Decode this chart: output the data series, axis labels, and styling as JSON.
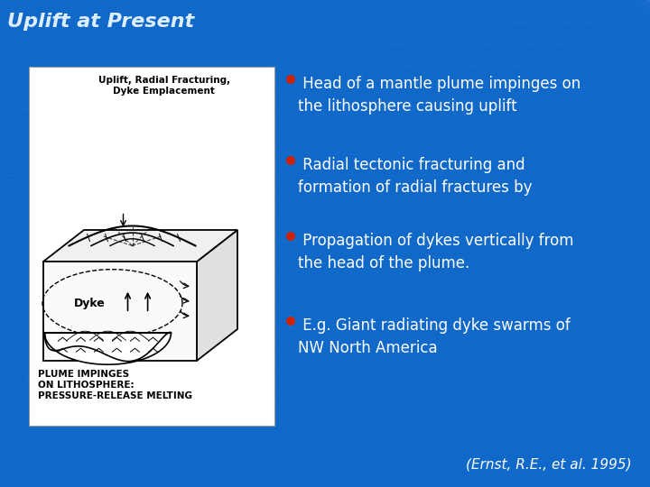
{
  "title": "Uplift at Present",
  "title_color": "#DDEEFF",
  "title_fontsize": 16,
  "bg_color": "#1068C8",
  "bullet_color": "#CC2200",
  "text_color": "#FFFFFF",
  "bullet_points": [
    " Head of a mantle plume impinges on\nthe lithosphere causing uplift",
    " Radial tectonic fracturing and\nformation of radial fractures by",
    " Propagation of dykes vertically from\nthe head of the plume.",
    " E.g. Giant radiating dyke swarms of\nNW North America"
  ],
  "citation": "(Ernst, R.E., et al. 1995)",
  "citation_color": "#FFFFFF",
  "image_label_top1": "Uplift, Radial Fracturing,",
  "image_label_top2": "Dyke Emplacement",
  "image_label_bottom1": "PLUME IMPINGES",
  "image_label_bottom2": "ON LITHOSPHERE:",
  "image_label_bottom3": "PRESSURE-RELEASE MELTING",
  "image_label_dyke": "Dyke",
  "image_bg": "#FFFFFF",
  "grid_line_color": "#4488EE"
}
